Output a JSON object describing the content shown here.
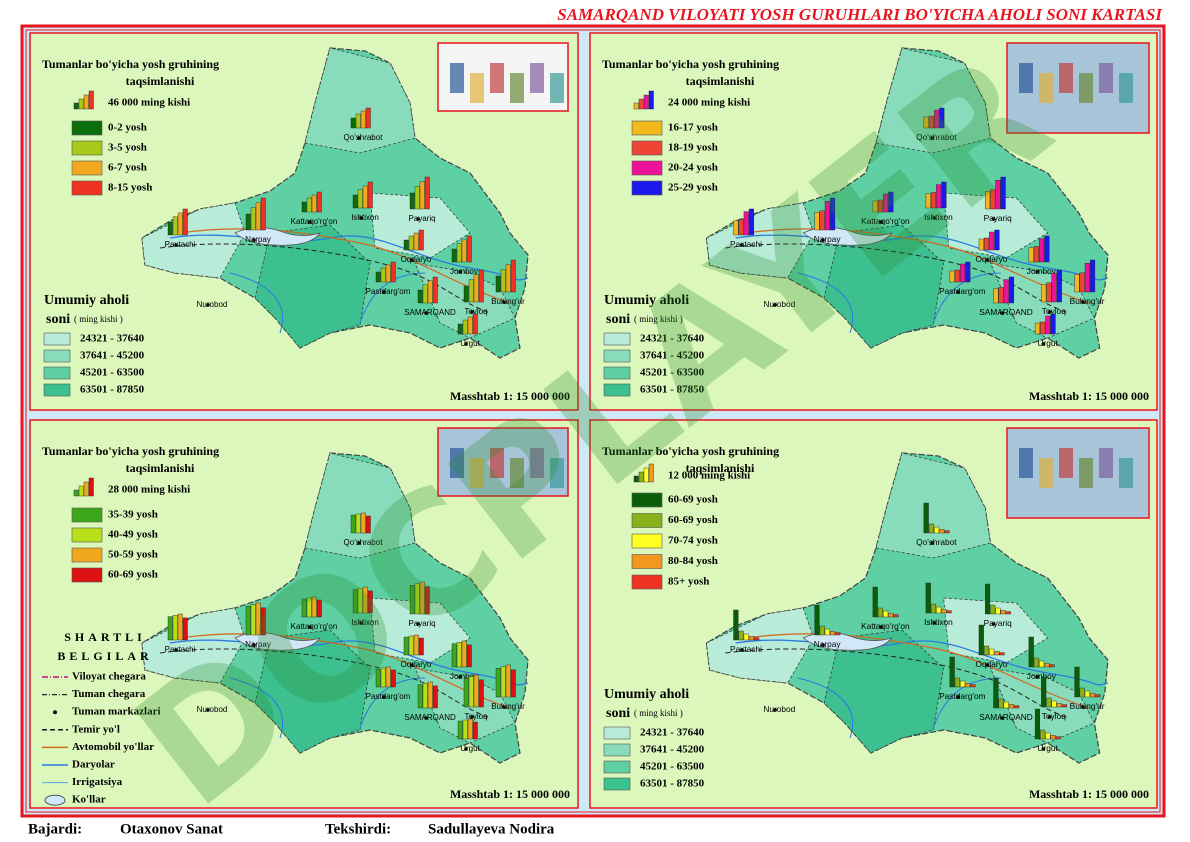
{
  "title": "SAMARQAND VILOYATI YOSH GURUHLARI BO'YICHA AHOLI SONI KARTASI",
  "watermark": "DOCPLAYER",
  "districts": [
    "Qo'shrabot",
    "Paxtachi",
    "Narpay",
    "Kattaqo'rg'on",
    "Ishtixon",
    "Payariq",
    "Oqdaryo",
    "Jomboy",
    "Bulung'ur",
    "Pastdarg'om",
    "SAMARQAND",
    "Toyloq",
    "Urgut",
    "Nurobod"
  ],
  "panels": [
    {
      "heading": [
        "Tumanlar bo'yicha yosh gruhining",
        "taqsimlanishi"
      ],
      "unit": "46 000 ming kishi",
      "groups": [
        {
          "label": "0-2 yosh",
          "color": "#0a6e0a"
        },
        {
          "label": "3-5 yosh",
          "color": "#a8c81a"
        },
        {
          "label": "6-7 yosh",
          "color": "#f2a81e"
        },
        {
          "label": "8-15 yosh",
          "color": "#ee3322"
        }
      ],
      "population": {
        "title": [
          "Umumiy aholi",
          "soni"
        ],
        "unit": "( ming kishi )",
        "ranges": [
          {
            "label": "24321 - 37640",
            "color": "#b8ecd8"
          },
          {
            "label": "37641 - 45200",
            "color": "#88dcbc"
          },
          {
            "label": "45201 - 63500",
            "color": "#5ed0a4"
          },
          {
            "label": "63501 - 87850",
            "color": "#3cc090"
          }
        ]
      },
      "scale": "Masshtab 1: 15 000 000"
    },
    {
      "heading": [
        "Tumanlar bo'yicha yosh gruhining",
        "taqsimlanishi"
      ],
      "unit": "24 000 ming kishi",
      "groups": [
        {
          "label": "16-17 yosh",
          "color": "#f2b81e"
        },
        {
          "label": "18-19 yosh",
          "color": "#ee4433"
        },
        {
          "label": "20-24 yosh",
          "color": "#ee1199"
        },
        {
          "label": "25-29 yosh",
          "color": "#1a1aee"
        }
      ],
      "population": {
        "title": [
          "Umumiy aholi",
          "soni"
        ],
        "unit": "( ming kishi )",
        "ranges": [
          {
            "label": "24321 - 37640",
            "color": "#b8ecd8"
          },
          {
            "label": "37641 - 45200",
            "color": "#88dcbc"
          },
          {
            "label": "45201 - 63500",
            "color": "#5ed0a4"
          },
          {
            "label": "63501 - 87850",
            "color": "#3cc090"
          }
        ]
      },
      "scale": "Masshtab 1: 15 000 000"
    },
    {
      "heading": [
        "Tumanlar bo'yicha yosh gruhining",
        "taqsimlanishi"
      ],
      "unit": "28 000 ming kishi",
      "groups": [
        {
          "label": "35-39 yosh",
          "color": "#3aa81a"
        },
        {
          "label": "40-49 yosh",
          "color": "#b8e01a"
        },
        {
          "label": "50-59 yosh",
          "color": "#f2a81e"
        },
        {
          "label": "60-69 yosh",
          "color": "#dd1111"
        }
      ],
      "scale": "Masshtab 1: 15 000 000"
    },
    {
      "heading": [
        "Tumanlar bo'yicha yosh gruhining",
        "taqsimlanishi"
      ],
      "unit": "12 000 ming kishi",
      "groups": [
        {
          "label": "60-69 yosh",
          "color": "#0a5e0a"
        },
        {
          "label": "60-69 yosh",
          "color": "#8ab01a"
        },
        {
          "label": "70-74 yosh",
          "color": "#ffff22"
        },
        {
          "label": "80-84 yosh",
          "color": "#f2981e"
        },
        {
          "label": "85+ yosh",
          "color": "#ee3322"
        }
      ],
      "population": {
        "title": [
          "Umumiy aholi",
          "soni"
        ],
        "unit": "( ming kishi )",
        "ranges": [
          {
            "label": "24321 - 37640",
            "color": "#b8ecd8"
          },
          {
            "label": "37641 - 45200",
            "color": "#88dcbc"
          },
          {
            "label": "45201 - 63500",
            "color": "#5ed0a4"
          },
          {
            "label": "63501 - 87850",
            "color": "#3cc090"
          }
        ]
      },
      "scale": "Masshtab 1: 15 000 000"
    }
  ],
  "symbols": {
    "title": [
      "SHARTLI",
      "BELGILAR"
    ],
    "items": [
      "Viloyat chegara",
      "Tuman chegara",
      "Tuman markazlari",
      "Temir yo'l",
      "Avtomobil yo'llar",
      "Daryolar",
      "Irrigatsiya",
      "Ko'llar"
    ]
  },
  "footer": {
    "made_by_label": "Bajardi:",
    "made_by": "Otaxonov Sanat",
    "checked_by_label": "Tekshirdi:",
    "checked_by": "Sadullayeva Nodira"
  }
}
